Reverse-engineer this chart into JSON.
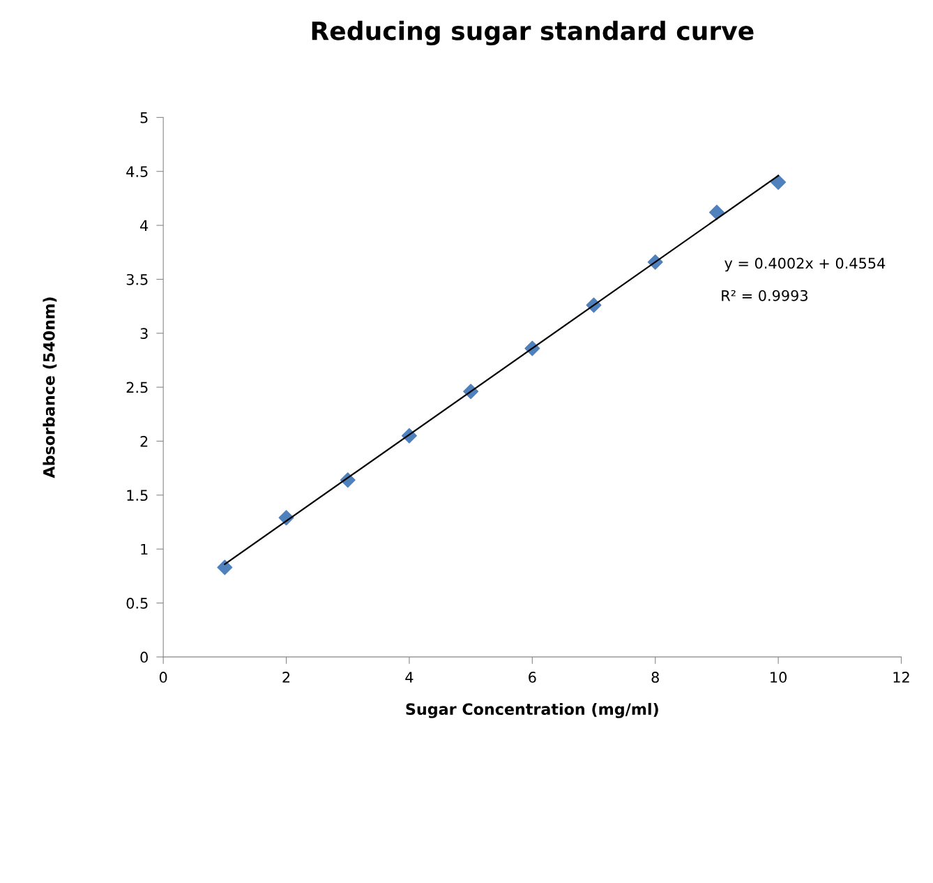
{
  "chart_data": {
    "type": "scatter",
    "title": "Reducing sugar standard curve",
    "xlabel": "Sugar Concentration (mg/ml)",
    "ylabel": "Absorbance (540nm)",
    "series": [
      {
        "color": "#4f81bd",
        "marker": "diamond",
        "x": [
          1,
          2,
          3,
          4,
          5,
          6,
          7,
          8,
          9,
          10
        ],
        "values": [
          0.83,
          1.29,
          1.64,
          2.05,
          2.46,
          2.86,
          3.26,
          3.66,
          4.12,
          4.4
        ]
      },
      {
        "type": "line",
        "color": "#000000",
        "marker": "none",
        "line_style": "solid",
        "x": [
          1,
          10
        ],
        "values": [
          0.86,
          4.46
        ]
      }
    ],
    "annotations": [
      "y = 0.4002x + 0.4554",
      "R² = 0.9993"
    ],
    "xlim": [
      0,
      12
    ],
    "xticks": [
      0,
      2,
      4,
      6,
      8,
      10,
      12
    ],
    "ylim": [
      0,
      5
    ],
    "yticks": [
      0,
      0.5,
      1,
      1.5,
      2,
      2.5,
      3,
      3.5,
      4,
      4.5,
      5
    ],
    "grid": false,
    "legend": false
  }
}
